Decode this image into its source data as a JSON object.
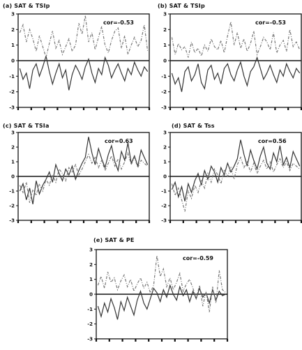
{
  "chart_data": [
    {
      "type": "line",
      "title": "(a) SAT & TSIp",
      "corr_label": "cor=-0.53",
      "ylim": [
        -3,
        3
      ],
      "yticks": [
        "3",
        "2",
        "1",
        "0",
        "-1",
        "-2",
        "-3"
      ],
      "grid": false,
      "series": [
        {
          "style": "solid",
          "values": [
            -0.5,
            -1.2,
            -0.8,
            -1.8,
            -0.6,
            -0.2,
            -1.0,
            -0.4,
            0.3,
            -0.7,
            -1.5,
            -0.8,
            -0.2,
            -1.1,
            -0.6,
            -1.9,
            -0.9,
            -0.3,
            -0.7,
            -1.2,
            -0.4,
            0.1,
            -0.8,
            -1.4,
            -0.5,
            -0.9,
            0.2,
            -0.3,
            -1.1,
            -0.6,
            -0.2,
            -0.8,
            -1.3,
            -0.5,
            -0.9,
            -0.1,
            -0.6,
            -1.0,
            -0.4,
            -0.7
          ]
        },
        {
          "style": "dashed",
          "values": [
            1.8,
            2.3,
            1.2,
            2.0,
            1.4,
            0.6,
            1.6,
            0.9,
            0.2,
            1.1,
            1.9,
            0.8,
            1.3,
            0.4,
            0.9,
            1.4,
            0.6,
            1.0,
            2.4,
            1.7,
            2.9,
            1.2,
            1.8,
            0.7,
            1.5,
            2.2,
            1.0,
            0.5,
            1.3,
            1.9,
            2.1,
            0.8,
            1.6,
            0.4,
            1.0,
            1.5,
            0.9,
            1.3,
            2.3,
            0.6
          ]
        }
      ]
    },
    {
      "type": "line",
      "title": "(b) SAT & TSIp",
      "corr_label": "cor=-0.53",
      "ylim": [
        -3,
        3
      ],
      "yticks": [
        "3",
        "2",
        "1",
        "0",
        "-1",
        "-2",
        "-3"
      ],
      "grid": false,
      "series": [
        {
          "style": "solid",
          "values": [
            -0.8,
            -1.5,
            -1.1,
            -2.0,
            -0.7,
            -0.4,
            -1.3,
            -0.9,
            -0.2,
            -1.4,
            -1.8,
            -0.6,
            -0.3,
            -1.2,
            -0.8,
            -1.5,
            -0.5,
            -0.2,
            -0.9,
            -1.3,
            -0.6,
            -0.1,
            -1.0,
            -1.6,
            -0.7,
            -0.4,
            0.2,
            -0.5,
            -1.2,
            -0.8,
            -0.3,
            -0.9,
            -1.4,
            -0.6,
            -1.0,
            -0.2,
            -0.7,
            -1.1,
            -0.5,
            -0.8
          ]
        },
        {
          "style": "dashed",
          "values": [
            1.5,
            0.4,
            1.1,
            0.7,
            0.9,
            0.2,
            1.2,
            0.5,
            0.8,
            0.3,
            1.0,
            0.6,
            1.4,
            0.9,
            0.7,
            1.3,
            0.5,
            1.6,
            2.5,
            1.0,
            1.8,
            0.8,
            1.4,
            0.6,
            1.1,
            1.9,
            0.4,
            0.9,
            1.5,
            1.2,
            0.7,
            1.8,
            0.5,
            1.0,
            1.3,
            0.6,
            2.0,
            0.9,
            1.2,
            0.7
          ]
        }
      ]
    },
    {
      "type": "line",
      "title": "(c) SAT & TSIa",
      "corr_label": "cor=0.63",
      "ylim": [
        -3,
        3
      ],
      "yticks": [
        "3",
        "2",
        "1",
        "0",
        "-1",
        "-2",
        "-3"
      ],
      "grid": false,
      "series": [
        {
          "style": "solid",
          "values": [
            -1.0,
            -0.5,
            -1.6,
            -0.8,
            -1.9,
            -0.3,
            -1.2,
            -0.6,
            -0.2,
            0.3,
            -0.4,
            0.8,
            0.2,
            -0.3,
            0.5,
            0.1,
            0.7,
            -0.2,
            0.4,
            0.9,
            1.3,
            2.7,
            1.6,
            0.8,
            1.9,
            1.2,
            0.6,
            1.5,
            2.1,
            1.0,
            0.4,
            1.7,
            1.1,
            2.3,
            0.9,
            1.4,
            0.7,
            1.8,
            1.3,
            0.8
          ]
        },
        {
          "style": "dashed",
          "values": [
            -0.6,
            -1.1,
            -0.4,
            -1.8,
            -0.9,
            -1.3,
            -0.5,
            -1.0,
            -0.2,
            -0.6,
            0.1,
            -0.4,
            0.5,
            0.2,
            -0.3,
            0.6,
            0.3,
            0.8,
            0.1,
            0.5,
            1.0,
            1.5,
            0.9,
            1.3,
            0.6,
            1.1,
            0.4,
            0.9,
            1.4,
            0.7,
            1.2,
            0.5,
            1.0,
            1.6,
            0.8,
            1.3,
            0.6,
            1.1,
            0.9,
            0.7
          ]
        }
      ]
    },
    {
      "type": "line",
      "title": "(d) SAT & Tss",
      "corr_label": "cor=0.56",
      "ylim": [
        -3,
        3
      ],
      "yticks": [
        "3",
        "2",
        "1",
        "0",
        "-1",
        "-2",
        "-3"
      ],
      "grid": false,
      "series": [
        {
          "style": "solid",
          "values": [
            -0.9,
            -0.4,
            -1.4,
            -0.7,
            -1.7,
            -0.5,
            -1.1,
            -0.3,
            0.2,
            -0.6,
            0.4,
            -0.2,
            0.7,
            0.3,
            -0.4,
            0.6,
            0.1,
            0.9,
            0.3,
            0.7,
            1.2,
            2.5,
            1.5,
            0.7,
            1.8,
            1.1,
            0.5,
            1.4,
            2.0,
            0.9,
            0.5,
            1.6,
            1.0,
            2.1,
            0.8,
            1.3,
            0.6,
            1.7,
            1.2,
            0.7
          ]
        },
        {
          "style": "dashed",
          "values": [
            -0.5,
            -1.3,
            -0.8,
            -1.6,
            -2.4,
            -1.0,
            -1.5,
            -0.6,
            -1.1,
            -0.3,
            -0.8,
            0.2,
            -0.4,
            0.5,
            0.1,
            -0.5,
            0.4,
            0.0,
            0.6,
            -0.2,
            0.8,
            1.3,
            0.6,
            1.0,
            0.3,
            0.9,
            0.2,
            0.7,
            1.1,
            0.5,
            1.0,
            0.3,
            0.8,
            1.2,
            0.6,
            1.0,
            0.4,
            0.9,
            0.7,
            0.5
          ]
        }
      ]
    },
    {
      "type": "line",
      "title": "(e) SAT & PE",
      "corr_label": "cor=-0.59",
      "ylim": [
        -3,
        3
      ],
      "yticks": [
        "3",
        "2",
        "1",
        "0",
        "-1",
        "-2",
        "-3"
      ],
      "grid": false,
      "series": [
        {
          "style": "solid",
          "values": [
            -0.8,
            -1.5,
            -0.6,
            -1.2,
            -0.3,
            -0.9,
            -1.7,
            -0.5,
            -1.1,
            -0.2,
            -0.8,
            -1.4,
            -0.4,
            0.2,
            -0.6,
            -1.0,
            -0.3,
            0.4,
            0.1,
            -0.5,
            0.3,
            -0.2,
            0.6,
            0.0,
            -0.4,
            0.5,
            -0.1,
            0.3,
            -0.5,
            0.2,
            -0.3,
            0.4,
            -0.2,
            0.1,
            -0.6,
            0.3,
            -0.4,
            0.2,
            -0.1,
            0.0
          ]
        },
        {
          "style": "dashed",
          "values": [
            0.6,
            1.2,
            0.4,
            1.5,
            0.8,
            1.1,
            0.3,
            0.9,
            1.3,
            0.5,
            1.0,
            0.2,
            0.7,
            1.1,
            0.4,
            0.8,
            0.1,
            0.6,
            2.6,
            1.2,
            1.7,
            0.5,
            1.1,
            0.3,
            0.8,
            1.4,
            0.2,
            0.7,
            1.0,
            0.4,
            -0.3,
            0.6,
            -0.8,
            0.2,
            -1.2,
            0.5,
            -0.6,
            1.6,
            0.3,
            0.1
          ]
        }
      ]
    }
  ]
}
